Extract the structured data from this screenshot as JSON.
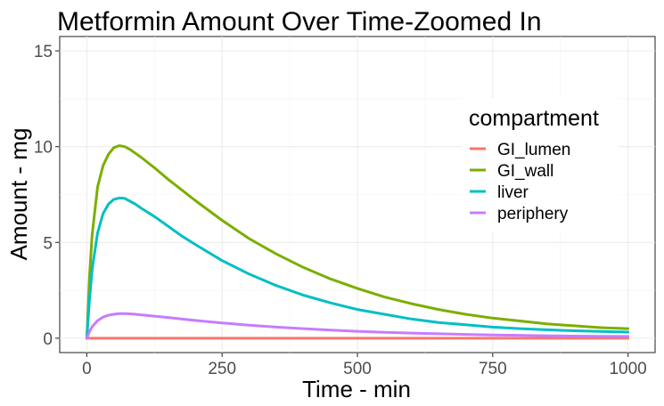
{
  "chart_data": {
    "type": "line",
    "title": "Metformin Amount Over Time-Zoomed In",
    "xlabel": "Time - min",
    "ylabel": "Amount - mg",
    "xlim": [
      -50,
      1050
    ],
    "ylim": [
      -0.75,
      15.75
    ],
    "x_ticks": [
      0,
      250,
      500,
      750,
      1000
    ],
    "y_ticks": [
      0,
      5,
      10,
      15
    ],
    "grid": true,
    "legend": {
      "title": "compartment",
      "position": "right-inside"
    },
    "x": [
      0,
      5,
      10,
      20,
      30,
      40,
      50,
      60,
      70,
      80,
      90,
      100,
      125,
      150,
      175,
      200,
      250,
      300,
      350,
      400,
      450,
      500,
      550,
      600,
      650,
      700,
      750,
      800,
      850,
      900,
      950,
      1000
    ],
    "series": [
      {
        "name": "GI_lumen",
        "color": "#F8766D",
        "values": [
          0,
          0,
          0,
          0,
          0,
          0,
          0,
          0,
          0,
          0,
          0,
          0,
          0,
          0,
          0,
          0,
          0,
          0,
          0,
          0,
          0,
          0,
          0,
          0,
          0,
          0,
          0,
          0,
          0,
          0,
          0,
          0
        ]
      },
      {
        "name": "GI_wall",
        "color": "#7CAE00",
        "values": [
          0,
          3.2,
          5.4,
          7.9,
          9.0,
          9.6,
          9.95,
          10.05,
          10.0,
          9.85,
          9.65,
          9.45,
          8.9,
          8.3,
          7.75,
          7.2,
          6.15,
          5.2,
          4.4,
          3.7,
          3.1,
          2.6,
          2.15,
          1.8,
          1.5,
          1.25,
          1.05,
          0.9,
          0.75,
          0.65,
          0.55,
          0.5
        ]
      },
      {
        "name": "liver",
        "color": "#00BFC4",
        "values": [
          0,
          2.0,
          3.6,
          5.5,
          6.5,
          7.0,
          7.25,
          7.32,
          7.3,
          7.15,
          7.0,
          6.8,
          6.35,
          5.85,
          5.35,
          4.9,
          4.05,
          3.35,
          2.75,
          2.25,
          1.85,
          1.5,
          1.25,
          1.0,
          0.82,
          0.7,
          0.58,
          0.5,
          0.44,
          0.39,
          0.35,
          0.32
        ]
      },
      {
        "name": "periphery",
        "color": "#C77CFF",
        "values": [
          0,
          0.35,
          0.6,
          0.92,
          1.1,
          1.2,
          1.25,
          1.28,
          1.28,
          1.27,
          1.25,
          1.22,
          1.15,
          1.08,
          1.0,
          0.93,
          0.8,
          0.68,
          0.58,
          0.5,
          0.42,
          0.36,
          0.31,
          0.27,
          0.23,
          0.2,
          0.17,
          0.15,
          0.13,
          0.11,
          0.1,
          0.09
        ]
      }
    ]
  }
}
